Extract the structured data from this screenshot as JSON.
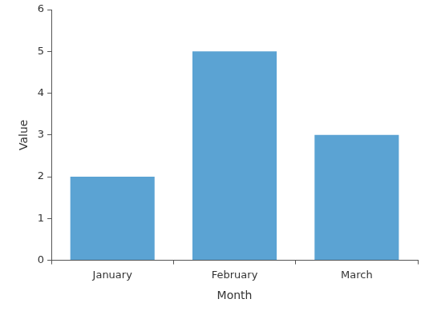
{
  "chart_data": {
    "type": "bar",
    "x_label": "Month",
    "y_label": "Value",
    "categories": [
      "January",
      "February",
      "March"
    ],
    "values": [
      2,
      5,
      3
    ],
    "color": "#5ba3d3",
    "ylim": [
      0,
      6
    ],
    "yticks": [
      0,
      1,
      2,
      3,
      4,
      5,
      6
    ],
    "grid": false
  }
}
